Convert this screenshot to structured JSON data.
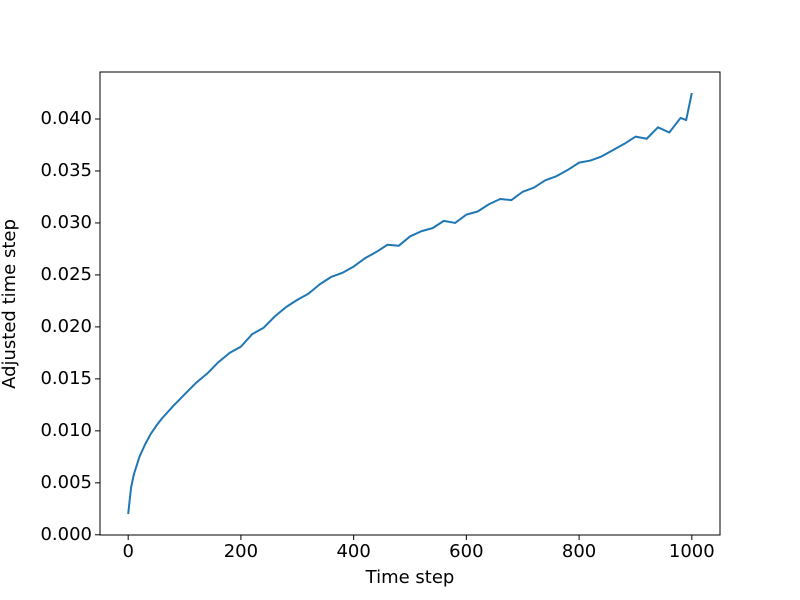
{
  "chart_data": {
    "type": "line",
    "xlabel": "Time step",
    "ylabel": "Adjusted time step",
    "x": [
      0,
      5,
      10,
      20,
      30,
      40,
      50,
      60,
      80,
      100,
      120,
      140,
      160,
      180,
      200,
      220,
      240,
      260,
      280,
      300,
      320,
      340,
      360,
      380,
      400,
      420,
      440,
      460,
      480,
      500,
      520,
      540,
      560,
      580,
      600,
      620,
      640,
      660,
      680,
      700,
      720,
      740,
      760,
      780,
      800,
      820,
      840,
      860,
      880,
      900,
      920,
      940,
      960,
      980,
      990,
      1000
    ],
    "series": [
      {
        "color": "#1f77b4",
        "values": [
          0.002,
          0.0045,
          0.0058,
          0.0075,
          0.0087,
          0.0097,
          0.0105,
          0.0112,
          0.0124,
          0.0135,
          0.0146,
          0.0155,
          0.0166,
          0.0175,
          0.0181,
          0.0193,
          0.0199,
          0.021,
          0.0219,
          0.0226,
          0.0232,
          0.0241,
          0.0248,
          0.0252,
          0.0258,
          0.0266,
          0.0272,
          0.0279,
          0.0278,
          0.0287,
          0.0292,
          0.0295,
          0.0302,
          0.03,
          0.0308,
          0.0311,
          0.0318,
          0.0323,
          0.0322,
          0.033,
          0.0334,
          0.0341,
          0.0345,
          0.0351,
          0.0358,
          0.036,
          0.0364,
          0.037,
          0.0376,
          0.0383,
          0.0381,
          0.0392,
          0.0387,
          0.0401,
          0.0399,
          0.0425
        ]
      }
    ],
    "xlim": [
      -50,
      1050
    ],
    "xticks": [
      0,
      200,
      400,
      600,
      800,
      1000
    ],
    "ylim": [
      -2e-05,
      0.04452
    ],
    "yticks": [
      {
        "value": 0,
        "label": "0.000"
      },
      {
        "value": 0.005,
        "label": "0.005"
      },
      {
        "value": 0.01,
        "label": "0.010"
      },
      {
        "value": 0.015,
        "label": "0.015"
      },
      {
        "value": 0.02,
        "label": "0.020"
      },
      {
        "value": 0.025,
        "label": "0.025"
      },
      {
        "value": 0.03,
        "label": "0.030"
      },
      {
        "value": 0.035,
        "label": "0.035"
      },
      {
        "value": 0.04,
        "label": "0.040"
      }
    ]
  }
}
